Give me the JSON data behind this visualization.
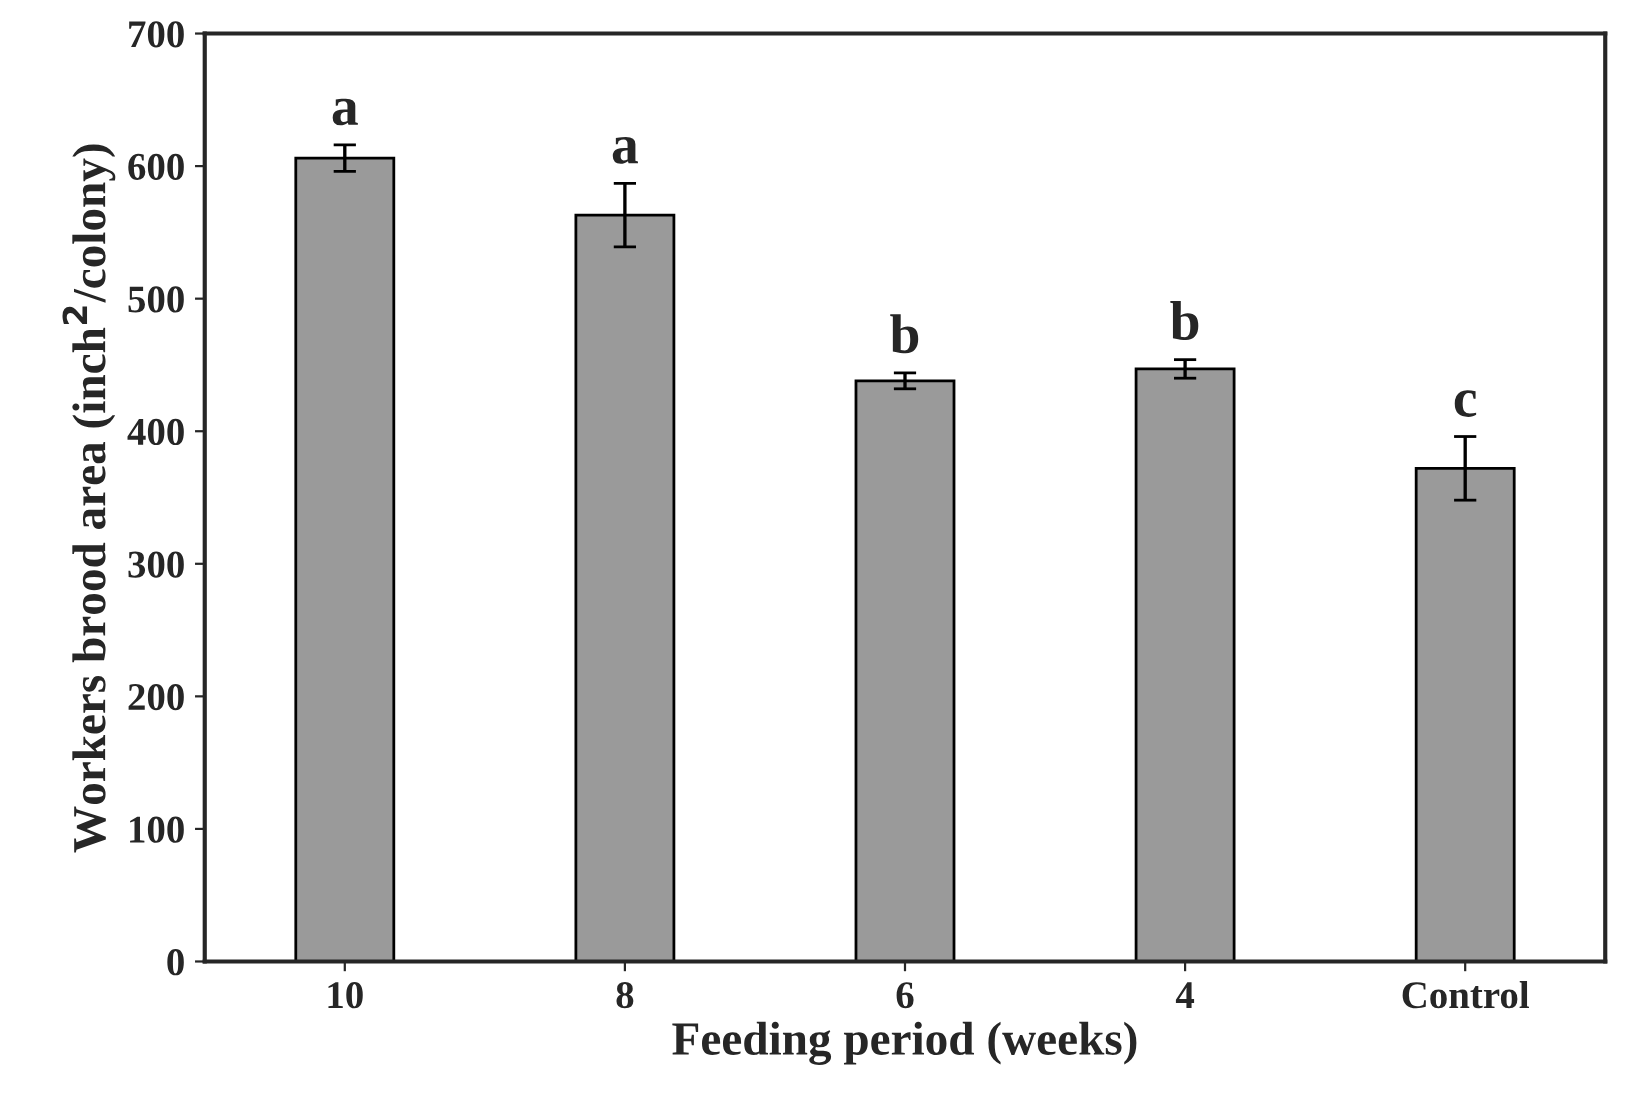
{
  "chart_data": {
    "type": "bar",
    "xlabel": "Feeding period (weeks)",
    "ylabel": "Workers brood area (inch$^{2}$/colony)",
    "categories": [
      "10",
      "8",
      "6",
      "4",
      "Control"
    ],
    "values": [
      606,
      563,
      438,
      447,
      372
    ],
    "errors": [
      10,
      24,
      6,
      7,
      24
    ],
    "color": "#9a9a9a",
    "ylim": [
      0,
      700
    ],
    "yticks": [
      0,
      100,
      200,
      300,
      400,
      500,
      600,
      700
    ],
    "annotations": [
      {
        "text": "a",
        "x": "10",
        "y": 616
      },
      {
        "text": "a",
        "x": "8",
        "y": 587
      },
      {
        "text": "b",
        "x": "6",
        "y": 444
      },
      {
        "text": "b",
        "x": "4",
        "y": 454
      },
      {
        "text": "c",
        "x": "Control",
        "y": 396
      }
    ],
    "grid": false
  }
}
